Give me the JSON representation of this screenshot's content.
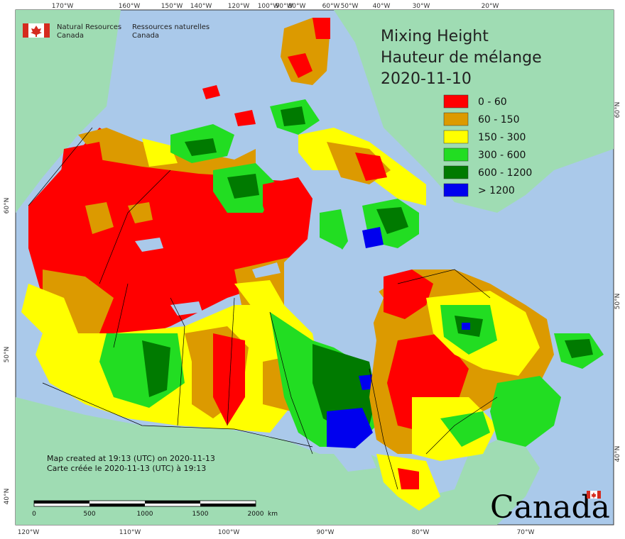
{
  "map": {
    "title_en": "Mixing Height",
    "title_fr": "Hauteur de mélange",
    "date": "2020-11-10",
    "agency_en_line1": "Natural Resources",
    "agency_en_line2": "Canada",
    "agency_fr_line1": "Ressources naturelles",
    "agency_fr_line2": "Canada",
    "created_en": "Map created at 19:13 (UTC) on 2020-11-13",
    "created_fr": "Carte créée le 2020-11-13 (UTC) à 19:13",
    "wordmark": "Canada",
    "scale": {
      "labels": [
        "0",
        "500",
        "1000",
        "1500",
        "2000"
      ],
      "unit": "km"
    },
    "top_ticks": [
      "170°W",
      "160°W",
      "150°W",
      "140°W",
      "120°W",
      "100°W",
      "90°W",
      "80°W",
      "60°W",
      "50°W",
      "40°W",
      "30°W",
      "20°W"
    ],
    "bottom_ticks": [
      "120°W",
      "110°W",
      "100°W",
      "90°W",
      "80°W",
      "70°W"
    ],
    "left_ticks": [
      "60°N",
      "50°N",
      "40°N"
    ],
    "right_ticks": [
      "60°N",
      "50°N",
      "40°N"
    ],
    "legend": [
      {
        "label": "0 - 60",
        "color": "#ff0000"
      },
      {
        "label": "60 - 150",
        "color": "#dc9a00"
      },
      {
        "label": "150 - 300",
        "color": "#ffff00"
      },
      {
        "label": "300 - 600",
        "color": "#22dd22"
      },
      {
        "label": "600 - 1200",
        "color": "#007a00"
      },
      {
        "label": "> 1200",
        "color": "#0000ee"
      }
    ],
    "colors": {
      "ocean": "#aac9ea",
      "foreign_land": "#9fdcb3",
      "border": "#000000"
    }
  }
}
